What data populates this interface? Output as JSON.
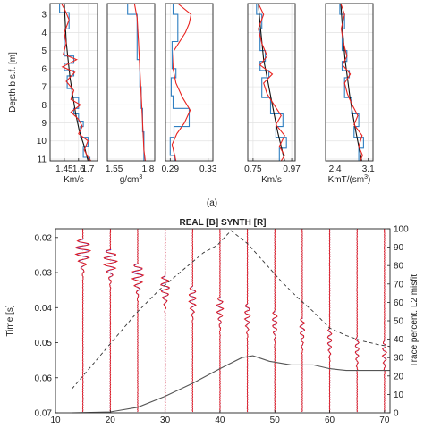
{
  "caption_a": "(a)",
  "top": {
    "ylabel": "Depth b.s.f. [m]",
    "yticks": [
      3,
      4,
      5,
      6,
      7,
      8,
      9,
      10,
      11
    ],
    "ylim": [
      2.4,
      11.1
    ],
    "colors": {
      "blocky": "#2f7fc1",
      "smooth": "#e8231f",
      "trend": "#111111"
    },
    "panels": [
      {
        "xlim": [
          1.3,
          1.8
        ],
        "xticks": [
          1.45,
          1.6,
          1.7
        ],
        "xticklabels": [
          "1.45",
          "1.6",
          "1.7"
        ],
        "xlabel": "Km/s",
        "blocky": [
          [
            1.4,
            2.4
          ],
          [
            1.4,
            2.9
          ],
          [
            1.5,
            2.9
          ],
          [
            1.5,
            3.8
          ],
          [
            1.45,
            3.8
          ],
          [
            1.45,
            5.3
          ],
          [
            1.55,
            5.3
          ],
          [
            1.55,
            5.7
          ],
          [
            1.45,
            5.7
          ],
          [
            1.45,
            6.1
          ],
          [
            1.55,
            6.1
          ],
          [
            1.55,
            6.4
          ],
          [
            1.48,
            6.4
          ],
          [
            1.48,
            7.1
          ],
          [
            1.53,
            7.1
          ],
          [
            1.53,
            7.6
          ],
          [
            1.6,
            7.6
          ],
          [
            1.6,
            8.2
          ],
          [
            1.55,
            8.2
          ],
          [
            1.55,
            8.5
          ],
          [
            1.6,
            8.5
          ],
          [
            1.6,
            8.9
          ],
          [
            1.65,
            8.9
          ],
          [
            1.65,
            9.2
          ],
          [
            1.62,
            9.2
          ],
          [
            1.62,
            9.8
          ],
          [
            1.7,
            9.8
          ],
          [
            1.7,
            10.3
          ],
          [
            1.65,
            10.3
          ],
          [
            1.65,
            10.9
          ],
          [
            1.72,
            10.9
          ],
          [
            1.72,
            11.1
          ]
        ],
        "smooth": [
          [
            1.42,
            2.4
          ],
          [
            1.46,
            2.8
          ],
          [
            1.5,
            3.3
          ],
          [
            1.45,
            4.0
          ],
          [
            1.47,
            4.6
          ],
          [
            1.44,
            5.2
          ],
          [
            1.58,
            5.5
          ],
          [
            1.43,
            5.9
          ],
          [
            1.56,
            6.2
          ],
          [
            1.47,
            6.7
          ],
          [
            1.55,
            7.2
          ],
          [
            1.52,
            7.7
          ],
          [
            1.62,
            8.0
          ],
          [
            1.52,
            8.4
          ],
          [
            1.6,
            8.8
          ],
          [
            1.64,
            9.2
          ],
          [
            1.6,
            9.6
          ],
          [
            1.7,
            10.0
          ],
          [
            1.66,
            10.5
          ],
          [
            1.7,
            10.9
          ],
          [
            1.73,
            11.1
          ]
        ],
        "trend": [
          [
            1.45,
            2.4
          ],
          [
            1.46,
            3.5
          ],
          [
            1.47,
            4.5
          ],
          [
            1.49,
            5.5
          ],
          [
            1.51,
            6.5
          ],
          [
            1.54,
            7.5
          ],
          [
            1.57,
            8.5
          ],
          [
            1.61,
            9.5
          ],
          [
            1.66,
            10.3
          ],
          [
            1.7,
            11.1
          ]
        ]
      },
      {
        "xlim": [
          1.5,
          1.85
        ],
        "xticks": [
          1.55,
          1.8
        ],
        "xticklabels": [
          "1.55",
          "1.8"
        ],
        "xlabel": "g/cm³",
        "blocky": [
          [
            1.65,
            2.4
          ],
          [
            1.65,
            3.0
          ],
          [
            1.72,
            3.0
          ],
          [
            1.72,
            3.8
          ],
          [
            1.72,
            5.5
          ],
          [
            1.74,
            5.5
          ],
          [
            1.74,
            7.0
          ],
          [
            1.75,
            7.0
          ],
          [
            1.75,
            8.2
          ],
          [
            1.76,
            8.2
          ],
          [
            1.76,
            9.5
          ],
          [
            1.77,
            9.5
          ],
          [
            1.77,
            11.1
          ]
        ],
        "smooth": [
          [
            1.7,
            2.4
          ],
          [
            1.72,
            3.2
          ],
          [
            1.73,
            4.5
          ],
          [
            1.74,
            6.0
          ],
          [
            1.75,
            7.5
          ],
          [
            1.76,
            9.0
          ],
          [
            1.77,
            10.5
          ],
          [
            1.78,
            11.1
          ]
        ],
        "trend": []
      },
      {
        "xlim": [
          0.285,
          0.335
        ],
        "xticks": [
          0.29,
          0.33
        ],
        "xticklabels": [
          "0.29",
          "0.33"
        ],
        "xlabel": "",
        "blocky": [
          [
            0.293,
            2.4
          ],
          [
            0.293,
            3.0
          ],
          [
            0.298,
            3.0
          ],
          [
            0.298,
            4.5
          ],
          [
            0.292,
            4.5
          ],
          [
            0.292,
            6.0
          ],
          [
            0.296,
            6.0
          ],
          [
            0.296,
            6.5
          ],
          [
            0.291,
            6.5
          ],
          [
            0.291,
            7.5
          ],
          [
            0.293,
            7.5
          ],
          [
            0.293,
            8.2
          ],
          [
            0.31,
            8.2
          ],
          [
            0.31,
            9.2
          ],
          [
            0.294,
            9.2
          ],
          [
            0.294,
            9.8
          ],
          [
            0.29,
            9.8
          ],
          [
            0.29,
            10.8
          ],
          [
            0.295,
            10.8
          ],
          [
            0.295,
            11.1
          ]
        ],
        "smooth": [
          [
            0.298,
            2.4
          ],
          [
            0.312,
            3.0
          ],
          [
            0.31,
            3.5
          ],
          [
            0.306,
            4.0
          ],
          [
            0.3,
            4.5
          ],
          [
            0.294,
            5.0
          ],
          [
            0.293,
            6.0
          ],
          [
            0.296,
            6.8
          ],
          [
            0.303,
            7.6
          ],
          [
            0.311,
            8.3
          ],
          [
            0.305,
            9.0
          ],
          [
            0.297,
            9.6
          ],
          [
            0.292,
            10.2
          ],
          [
            0.296,
            11.1
          ]
        ],
        "trend": []
      },
      {
        "xlim": [
          0.72,
          0.99
        ],
        "xticks": [
          0.75,
          0.97
        ],
        "xticklabels": [
          "0.75",
          "0.97"
        ],
        "xlabel": "Km/s",
        "blocky": [
          [
            0.77,
            2.4
          ],
          [
            0.77,
            3.0
          ],
          [
            0.8,
            3.0
          ],
          [
            0.8,
            3.8
          ],
          [
            0.79,
            3.8
          ],
          [
            0.79,
            5.0
          ],
          [
            0.82,
            5.0
          ],
          [
            0.82,
            5.6
          ],
          [
            0.79,
            5.6
          ],
          [
            0.79,
            6.1
          ],
          [
            0.84,
            6.1
          ],
          [
            0.84,
            6.5
          ],
          [
            0.8,
            6.5
          ],
          [
            0.8,
            7.6
          ],
          [
            0.85,
            7.6
          ],
          [
            0.85,
            8.5
          ],
          [
            0.92,
            8.5
          ],
          [
            0.92,
            9.2
          ],
          [
            0.88,
            9.2
          ],
          [
            0.88,
            9.8
          ],
          [
            0.94,
            9.8
          ],
          [
            0.94,
            10.4
          ],
          [
            0.9,
            10.4
          ],
          [
            0.9,
            11.1
          ]
        ],
        "smooth": [
          [
            0.78,
            2.4
          ],
          [
            0.81,
            3.0
          ],
          [
            0.78,
            3.8
          ],
          [
            0.8,
            4.6
          ],
          [
            0.83,
            5.3
          ],
          [
            0.79,
            5.8
          ],
          [
            0.86,
            6.3
          ],
          [
            0.81,
            6.8
          ],
          [
            0.83,
            7.4
          ],
          [
            0.87,
            8.0
          ],
          [
            0.91,
            8.6
          ],
          [
            0.88,
            9.1
          ],
          [
            0.93,
            9.7
          ],
          [
            0.9,
            10.3
          ],
          [
            0.93,
            10.8
          ],
          [
            0.91,
            11.1
          ]
        ],
        "trend": [
          [
            0.78,
            2.4
          ],
          [
            0.79,
            3.5
          ],
          [
            0.8,
            4.5
          ],
          [
            0.81,
            5.5
          ],
          [
            0.83,
            6.5
          ],
          [
            0.85,
            7.5
          ],
          [
            0.87,
            8.5
          ],
          [
            0.89,
            9.5
          ],
          [
            0.91,
            10.3
          ],
          [
            0.93,
            11.1
          ]
        ]
      },
      {
        "xlim": [
          2.2,
          3.2
        ],
        "xticks": [
          2.4,
          3.1
        ],
        "xticklabels": [
          "2.4",
          "3.1"
        ],
        "xlabel": "KmT/(sm³)",
        "blocky": [
          [
            2.5,
            2.4
          ],
          [
            2.5,
            3.0
          ],
          [
            2.6,
            3.0
          ],
          [
            2.6,
            3.8
          ],
          [
            2.55,
            3.8
          ],
          [
            2.55,
            5.0
          ],
          [
            2.65,
            5.0
          ],
          [
            2.65,
            5.6
          ],
          [
            2.55,
            5.6
          ],
          [
            2.55,
            6.1
          ],
          [
            2.7,
            6.1
          ],
          [
            2.7,
            6.5
          ],
          [
            2.6,
            6.5
          ],
          [
            2.6,
            7.6
          ],
          [
            2.75,
            7.6
          ],
          [
            2.75,
            8.5
          ],
          [
            2.9,
            8.5
          ],
          [
            2.9,
            9.2
          ],
          [
            2.8,
            9.2
          ],
          [
            2.8,
            9.8
          ],
          [
            3.0,
            9.8
          ],
          [
            3.0,
            10.4
          ],
          [
            2.9,
            10.4
          ],
          [
            2.9,
            11.1
          ]
        ],
        "smooth": [
          [
            2.52,
            2.4
          ],
          [
            2.6,
            3.0
          ],
          [
            2.53,
            3.8
          ],
          [
            2.58,
            4.6
          ],
          [
            2.65,
            5.3
          ],
          [
            2.56,
            5.8
          ],
          [
            2.72,
            6.3
          ],
          [
            2.6,
            6.8
          ],
          [
            2.66,
            7.4
          ],
          [
            2.76,
            8.0
          ],
          [
            2.88,
            8.6
          ],
          [
            2.8,
            9.1
          ],
          [
            2.97,
            9.7
          ],
          [
            2.9,
            10.3
          ],
          [
            2.98,
            10.8
          ],
          [
            2.93,
            11.1
          ]
        ],
        "trend": [
          [
            2.52,
            2.4
          ],
          [
            2.55,
            3.5
          ],
          [
            2.58,
            4.5
          ],
          [
            2.61,
            5.5
          ],
          [
            2.66,
            6.5
          ],
          [
            2.71,
            7.5
          ],
          [
            2.77,
            8.5
          ],
          [
            2.84,
            9.5
          ],
          [
            2.9,
            10.3
          ],
          [
            2.96,
            11.1
          ]
        ]
      }
    ]
  },
  "bottom": {
    "title": "REAL [B] SYNTH [R]",
    "ylabel": "Time [s]",
    "ylabel_right": "Trace percent. L2 misfit",
    "xlim": [
      10,
      71
    ],
    "ylim": [
      0.0175,
      0.07
    ],
    "xticks": [
      10,
      20,
      30,
      40,
      50,
      60,
      70
    ],
    "yticks": [
      0.02,
      0.03,
      0.04,
      0.05,
      0.06,
      0.07
    ],
    "yticklabels": [
      "0.02",
      "0.03",
      "0.04",
      "0.05",
      "0.06",
      "0.07"
    ],
    "y2lim": [
      0,
      100
    ],
    "y2ticks": [
      0,
      10,
      20,
      30,
      40,
      50,
      60,
      70,
      80,
      90,
      100
    ],
    "colors": {
      "real": "#2b2bd6",
      "synth": "#e41a1c",
      "misfit": "#333333",
      "solid": "#555555"
    },
    "trace_x": [
      15,
      20,
      25,
      30,
      35,
      40,
      45,
      50,
      55,
      60,
      65,
      70
    ],
    "arrival_t": [
      0.0215,
      0.0245,
      0.0285,
      0.032,
      0.035,
      0.038,
      0.04,
      0.042,
      0.044,
      0.047,
      0.0495,
      0.0505
    ],
    "trace_amp": [
      7.5,
      6.5,
      5.5,
      4.5,
      3.8,
      3.2,
      2.8,
      2.6,
      2.4,
      2.2,
      2.0,
      2.0
    ],
    "misfit_dashed": [
      [
        13,
        13
      ],
      [
        17,
        27
      ],
      [
        21,
        41
      ],
      [
        25,
        55
      ],
      [
        29,
        67
      ],
      [
        33,
        77
      ],
      [
        37,
        87
      ],
      [
        39.5,
        91
      ],
      [
        42,
        99
      ],
      [
        45,
        92
      ],
      [
        48,
        82
      ],
      [
        51,
        72
      ],
      [
        54,
        63
      ],
      [
        57,
        55
      ],
      [
        60,
        46
      ],
      [
        63,
        42
      ],
      [
        66,
        39
      ],
      [
        69,
        37
      ],
      [
        71,
        36
      ]
    ],
    "misfit_solid": [
      [
        13,
        0
      ],
      [
        20,
        0.5
      ],
      [
        25,
        3
      ],
      [
        30,
        9
      ],
      [
        35,
        16
      ],
      [
        40,
        24
      ],
      [
        44,
        30
      ],
      [
        46,
        31
      ],
      [
        49,
        28
      ],
      [
        53,
        26
      ],
      [
        57,
        26
      ],
      [
        60,
        24
      ],
      [
        63,
        23
      ],
      [
        67,
        23
      ],
      [
        71,
        23
      ]
    ]
  }
}
